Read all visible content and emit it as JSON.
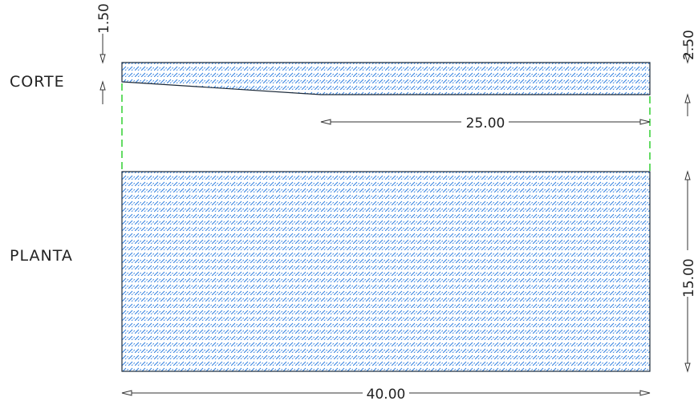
{
  "labels": {
    "corte": "CORTE",
    "planta": "PLANTA"
  },
  "dimensions": {
    "left_depth": "1.50",
    "right_depth": "2.50",
    "slope_length": "25.00",
    "plan_width": "15.00",
    "plan_length": "40.00"
  },
  "colors": {
    "hatch": "#2f7fe0",
    "outline": "#1c2a3a",
    "dimension": "#333333",
    "hidden_line": "#22cc22"
  }
}
